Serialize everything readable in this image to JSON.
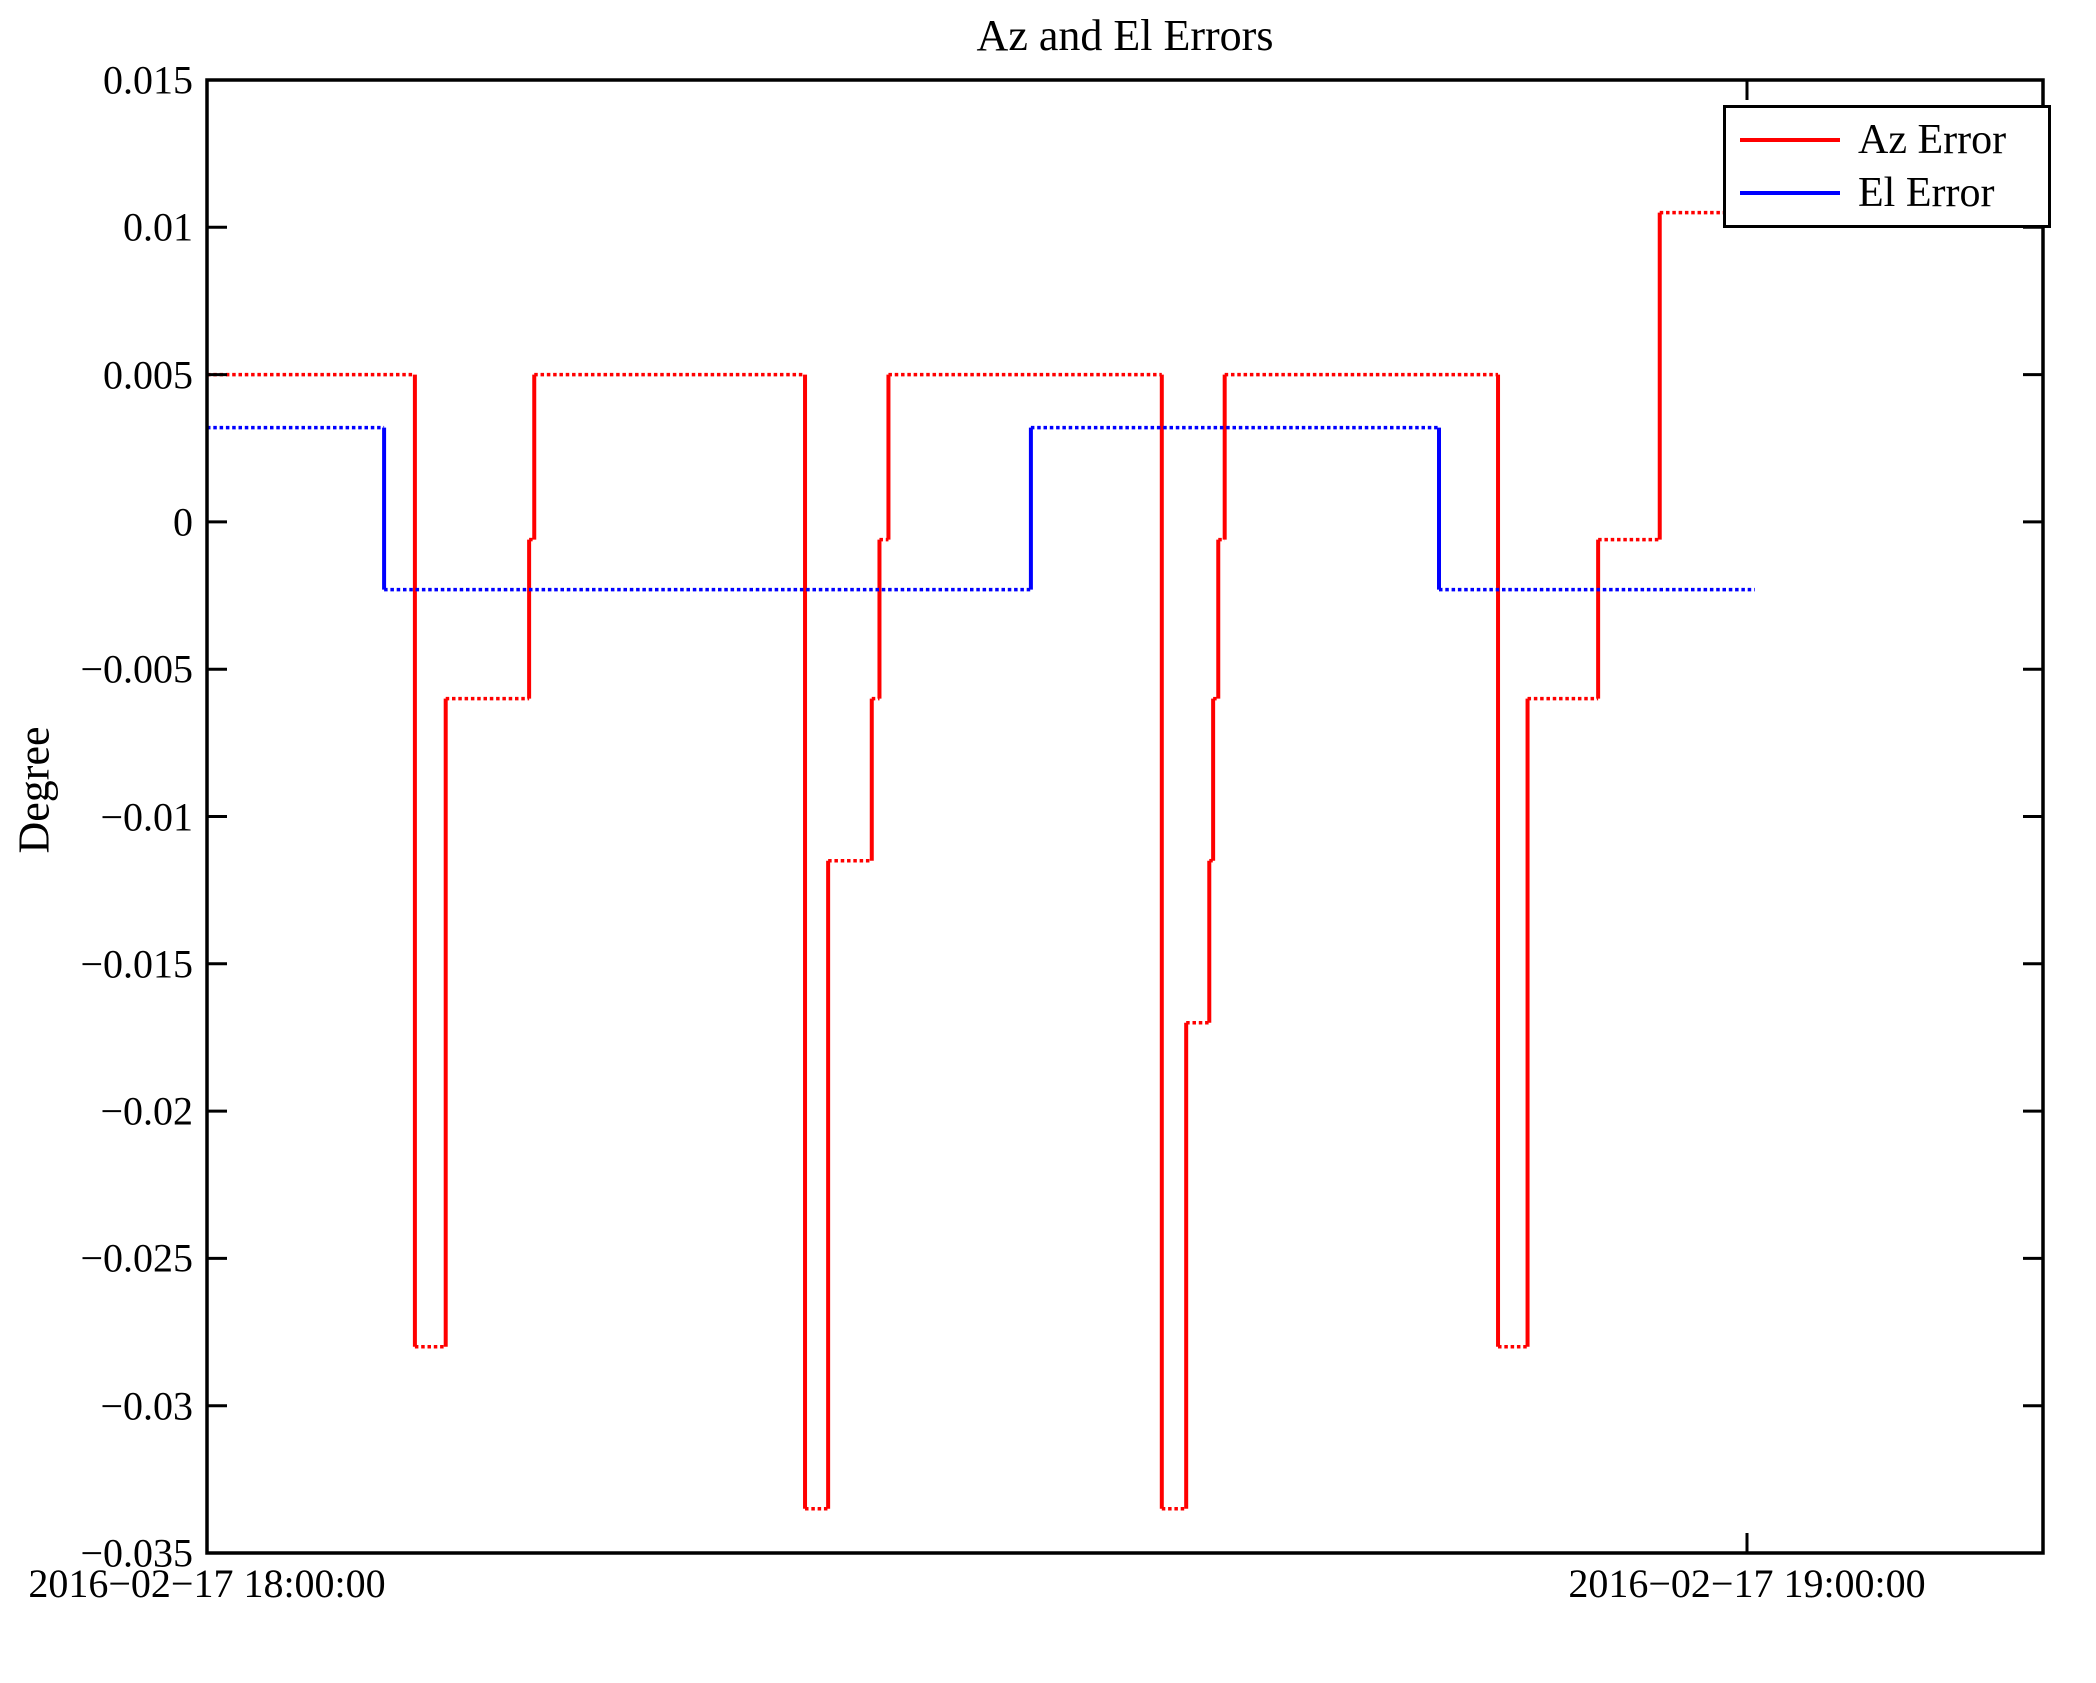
{
  "figure": {
    "title": "Az and El Errors",
    "y_axis_label": "Degree",
    "background_color": "#ffffff",
    "axis_color": "#000000"
  },
  "legend": {
    "position": "top-right",
    "items": [
      {
        "label": "Az Error",
        "color": "#ff0000"
      },
      {
        "label": "El Error",
        "color": "#0000ff"
      }
    ]
  },
  "chart_data": {
    "type": "line",
    "title": "Az and El Errors",
    "xlabel": "",
    "ylabel": "Degree",
    "x_unit": "minutes after 2016-02-17 18:00:00",
    "y_unit": "degree",
    "xlim_minutes": [
      0,
      71.5
    ],
    "ylim": [
      -0.035,
      0.015
    ],
    "grid": false,
    "legend_position": "top-right",
    "line_style": "dotted horizontal runs, solid vertical steps",
    "x_ticks": [
      {
        "minutes": 0,
        "label": "2016−02−17 18:00:00"
      },
      {
        "minutes": 60,
        "label": "2016−02−17 19:00:00"
      }
    ],
    "y_ticks": [
      {
        "value": 0.015,
        "label": "0.015"
      },
      {
        "value": 0.01,
        "label": "0.01"
      },
      {
        "value": 0.005,
        "label": "0.005"
      },
      {
        "value": 0,
        "label": "0"
      },
      {
        "value": -0.005,
        "label": "−0.005"
      },
      {
        "value": -0.01,
        "label": "−0.01"
      },
      {
        "value": -0.015,
        "label": "−0.015"
      },
      {
        "value": -0.02,
        "label": "−0.02"
      },
      {
        "value": -0.025,
        "label": "−0.025"
      },
      {
        "value": -0.03,
        "label": "−0.03"
      },
      {
        "value": -0.035,
        "label": "−0.035"
      }
    ],
    "series": [
      {
        "name": "Az Error",
        "color": "#ff0000",
        "end_minutes": 60.3,
        "step_points": [
          [
            0,
            0.005
          ],
          [
            8.1,
            -0.028
          ],
          [
            9.3,
            -0.006
          ],
          [
            12.55,
            -0.0006
          ],
          [
            12.75,
            0.005
          ],
          [
            23.3,
            -0.0335
          ],
          [
            24.2,
            -0.0115
          ],
          [
            25.9,
            -0.006
          ],
          [
            26.2,
            -0.0006
          ],
          [
            26.55,
            0.005
          ],
          [
            37.2,
            -0.0335
          ],
          [
            38.15,
            -0.017
          ],
          [
            39.05,
            -0.0115
          ],
          [
            39.2,
            -0.006
          ],
          [
            39.4,
            -0.0006
          ],
          [
            39.65,
            0.005
          ],
          [
            50.3,
            -0.028
          ],
          [
            51.45,
            -0.006
          ],
          [
            54.2,
            -0.0006
          ],
          [
            56.6,
            0.0105
          ]
        ]
      },
      {
        "name": "El Error",
        "color": "#0000ff",
        "end_minutes": 60.3,
        "step_points": [
          [
            0,
            0.0032
          ],
          [
            6.9,
            -0.0023
          ],
          [
            32.1,
            0.0032
          ],
          [
            48.0,
            -0.0023
          ]
        ]
      }
    ]
  }
}
